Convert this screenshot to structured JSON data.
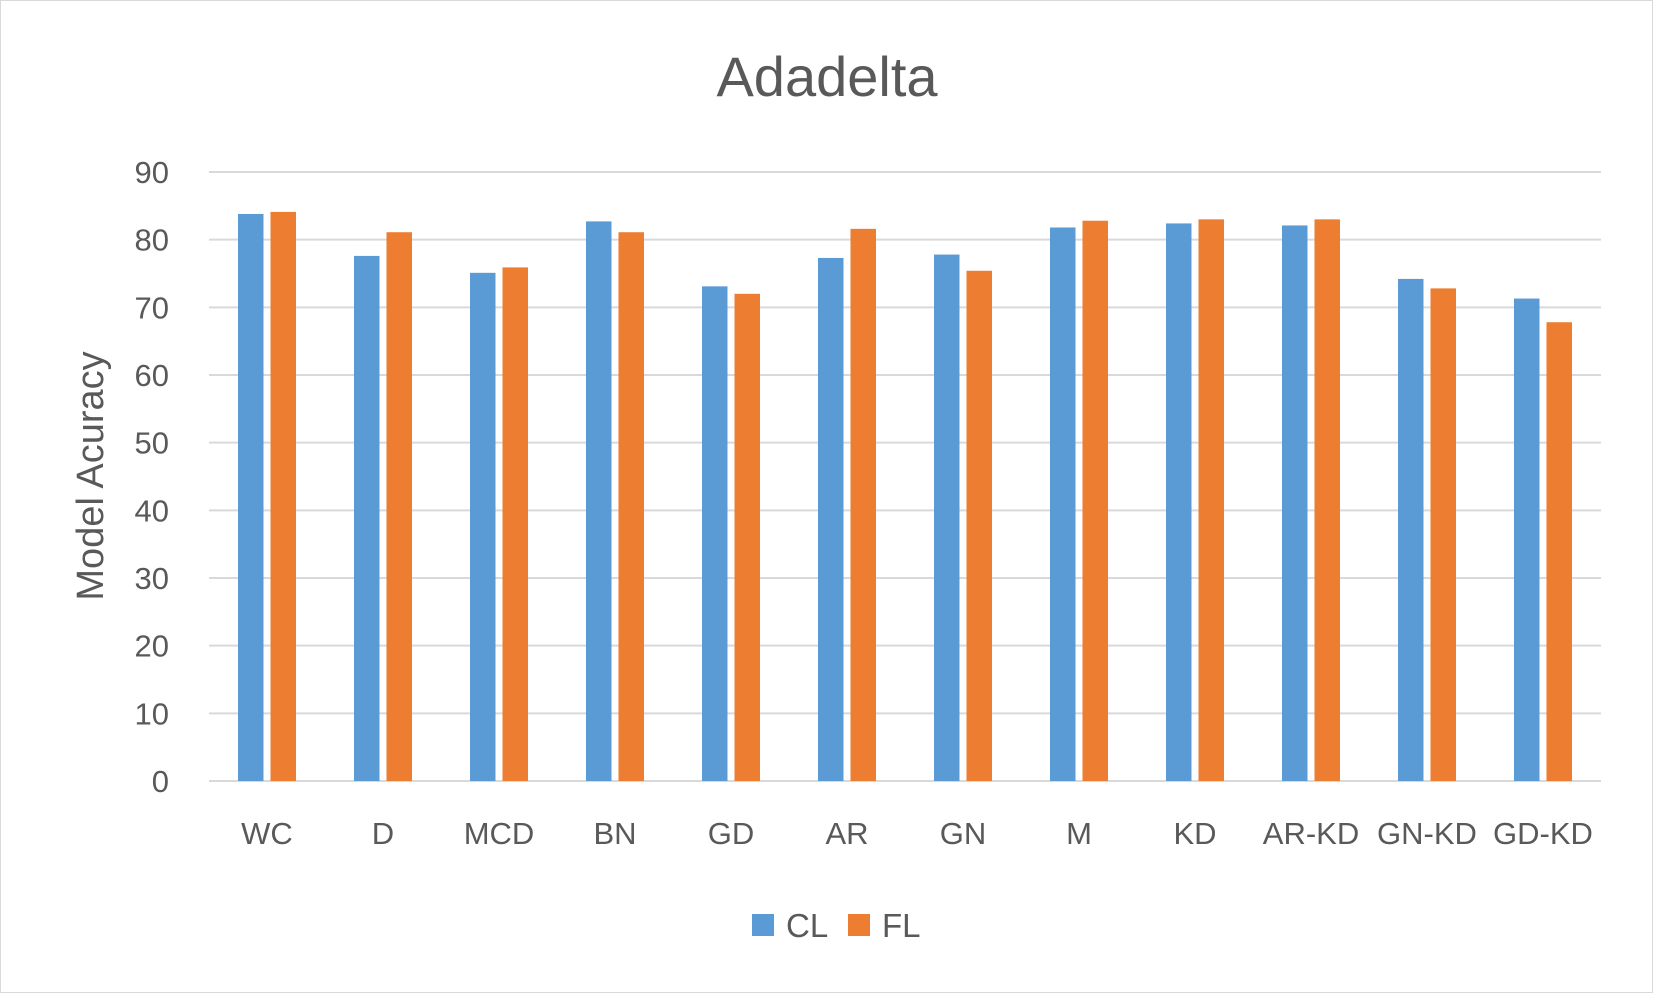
{
  "chart_data": {
    "type": "bar",
    "title": "Adadelta",
    "xlabel": "",
    "ylabel": "Model Acuracy",
    "ylim": [
      0,
      90
    ],
    "yticks": [
      0,
      10,
      20,
      30,
      40,
      50,
      60,
      70,
      80,
      90
    ],
    "grid": true,
    "legend_position": "bottom",
    "categories": [
      "WC",
      "D",
      "MCD",
      "BN",
      "GD",
      "AR",
      "GN",
      "M",
      "KD",
      "AR-KD",
      "GN-KD",
      "GD-KD"
    ],
    "series": [
      {
        "name": "CL",
        "color": "#5b9bd5",
        "values": [
          83.8,
          77.6,
          75.1,
          82.7,
          73.1,
          77.3,
          77.8,
          81.8,
          82.4,
          82.1,
          74.2,
          71.3
        ]
      },
      {
        "name": "FL",
        "color": "#ed7d31",
        "values": [
          84.1,
          81.1,
          75.9,
          81.1,
          72.0,
          81.6,
          75.4,
          82.8,
          83.0,
          83.0,
          72.8,
          67.8
        ]
      }
    ]
  }
}
